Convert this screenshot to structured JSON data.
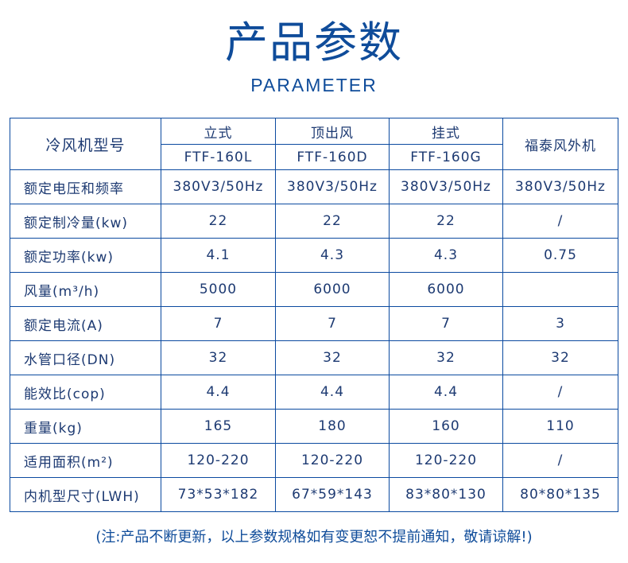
{
  "title": "产品参数",
  "subtitle": "PARAMETER",
  "table": {
    "row_header": "冷风机型号",
    "columns": [
      {
        "type": "立式",
        "model": "FTF-160L"
      },
      {
        "type": "顶出风",
        "model": "FTF-160D"
      },
      {
        "type": "挂式",
        "model": "FTF-160G"
      }
    ],
    "outdoor_header": "福泰风外机",
    "rows": [
      {
        "label": "额定电压和频率",
        "values": [
          "380V3/50Hz",
          "380V3/50Hz",
          "380V3/50Hz",
          "380V3/50Hz"
        ]
      },
      {
        "label": "额定制冷量(kw)",
        "values": [
          "22",
          "22",
          "22",
          "/"
        ]
      },
      {
        "label": "额定功率(kw)",
        "values": [
          "4.1",
          "4.3",
          "4.3",
          "0.75"
        ]
      },
      {
        "label": "风量(m³/h)",
        "values": [
          "5000",
          "6000",
          "6000",
          ""
        ]
      },
      {
        "label": "额定电流(A)",
        "values": [
          "7",
          "7",
          "7",
          "3"
        ]
      },
      {
        "label": "水管口径(DN)",
        "values": [
          "32",
          "32",
          "32",
          "32"
        ]
      },
      {
        "label": "能效比(cop)",
        "values": [
          "4.4",
          "4.4",
          "4.4",
          "/"
        ]
      },
      {
        "label": "重量(kg)",
        "values": [
          "165",
          "180",
          "160",
          "110"
        ]
      },
      {
        "label": "适用面积(m²)",
        "values": [
          "120-220",
          "120-220",
          "120-220",
          "/"
        ]
      },
      {
        "label": "内机型尺寸(LWH)",
        "values": [
          "73*53*182",
          "67*59*143",
          "83*80*130",
          "80*80*135"
        ]
      }
    ]
  },
  "note": "(注:产品不断更新，以上参数规格如有变更恕不提前通知，敬请谅解!)"
}
